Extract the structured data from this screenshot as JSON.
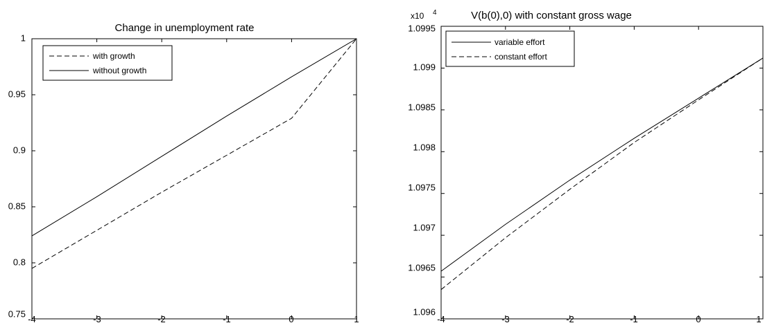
{
  "chart_data": [
    {
      "type": "line",
      "title": "Change in unemployment rate",
      "xlabel": "",
      "ylabel": "",
      "xlim": [
        -4,
        1
      ],
      "ylim": [
        0.75,
        1
      ],
      "x_ticks": [
        "-4",
        "-3",
        "-2",
        "-1",
        "0",
        "1"
      ],
      "y_ticks": [
        "0.75",
        "0.8",
        "0.85",
        "0.9",
        "0.95",
        "1"
      ],
      "grid": false,
      "legend_position": "top-left",
      "series": [
        {
          "name": "with growth",
          "style": "dashed",
          "color": "#000000",
          "x": [
            -4,
            -3,
            -2,
            -1,
            0,
            1
          ],
          "y": [
            0.795,
            0.829,
            0.863,
            0.896,
            0.929,
            1.0
          ]
        },
        {
          "name": "without growth",
          "style": "solid",
          "color": "#000000",
          "x": [
            -4,
            -3,
            -2,
            -1,
            0,
            1
          ],
          "y": [
            0.824,
            0.859,
            0.895,
            0.931,
            0.966,
            1.0
          ]
        }
      ]
    },
    {
      "type": "line",
      "title": "V(b(0),0) with constant gross wage",
      "exponent_label": "x10",
      "exponent_power": "4",
      "xlabel": "",
      "ylabel": "",
      "xlim": [
        -4,
        1
      ],
      "ylim": [
        1.096,
        1.0995
      ],
      "x_ticks": [
        "-4",
        "-3",
        "-2",
        "-1",
        "0",
        "1"
      ],
      "y_ticks": [
        "1.096",
        "1.0965",
        "1.097",
        "1.0975",
        "1.098",
        "1.0985",
        "1.099",
        "1.0995"
      ],
      "grid": false,
      "legend_position": "top-left",
      "series": [
        {
          "name": "variable effort",
          "style": "solid",
          "color": "#000000",
          "x": [
            -4,
            -3,
            -2,
            -1,
            0,
            1
          ],
          "y": [
            1.09657,
            1.09713,
            1.09766,
            1.09816,
            1.09864,
            1.09912
          ]
        },
        {
          "name": "constant effort",
          "style": "dashed",
          "color": "#000000",
          "x": [
            -4,
            -3,
            -2,
            -1,
            0,
            1
          ],
          "y": [
            1.09635,
            1.09697,
            1.09755,
            1.09811,
            1.09862,
            1.09912
          ]
        }
      ]
    }
  ]
}
